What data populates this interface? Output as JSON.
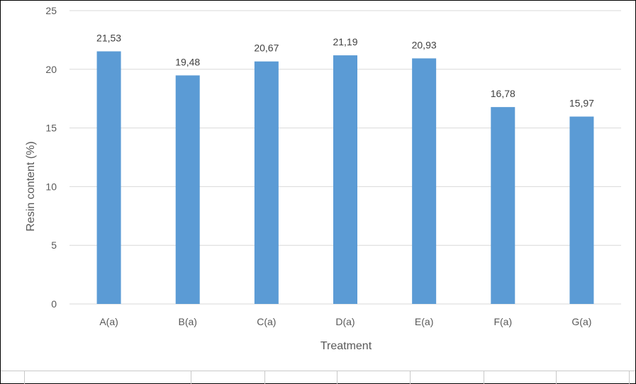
{
  "chart_data": {
    "type": "bar",
    "categories": [
      "A(a)",
      "B(a)",
      "C(a)",
      "D(a)",
      "E(a)",
      "F(a)",
      "G(a)"
    ],
    "values": [
      21.53,
      19.48,
      20.67,
      21.19,
      20.93,
      16.78,
      15.97
    ],
    "data_labels": [
      "21,53",
      "19,48",
      "20,67",
      "21,19",
      "20,93",
      "16,78",
      "15,97"
    ],
    "title": "",
    "xlabel": "Treatment",
    "ylabel": "Resin content (%)",
    "ylim": [
      0,
      25
    ],
    "yticks": [
      0,
      5,
      10,
      15,
      20,
      25
    ],
    "grid": true,
    "legend": "none",
    "bar_color": "#5b9bd5",
    "grid_color": "#d9d9d9"
  }
}
